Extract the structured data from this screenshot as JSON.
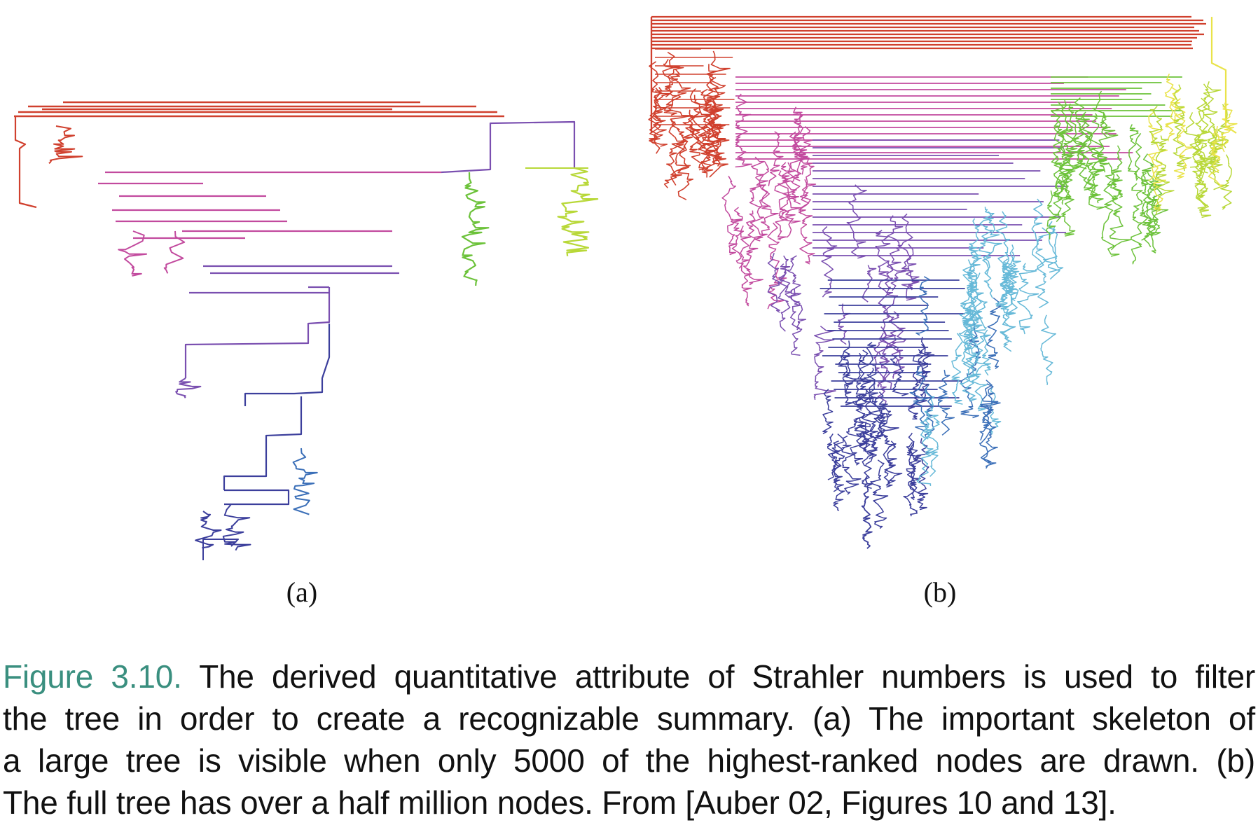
{
  "figure": {
    "panels": [
      {
        "id": "a",
        "label": "(a)"
      },
      {
        "id": "b",
        "label": "(b)"
      }
    ],
    "colors": {
      "red": "#d0402e",
      "magenta": "#c24a9e",
      "purple": "#7a4fb0",
      "indigo": "#3c3f9c",
      "blue": "#3b6fb8",
      "cyan": "#66b9d8",
      "green": "#6cc23a",
      "lime": "#b8d838",
      "yellow": "#e9e34a",
      "caption_accent": "#3a8f7f"
    }
  },
  "caption": {
    "number": "Figure 3.10.",
    "lines": [
      "The derived quantitative attribute of Strahler numbers is used to filter",
      "the tree in order to create a recognizable summary.  (a) The important skeleton of",
      "a large tree is visible when only 5000 of the highest-ranked nodes are drawn.  (b)",
      "The full tree has over a half million nodes. From [Auber 02, Figures 10 and 13]."
    ]
  }
}
